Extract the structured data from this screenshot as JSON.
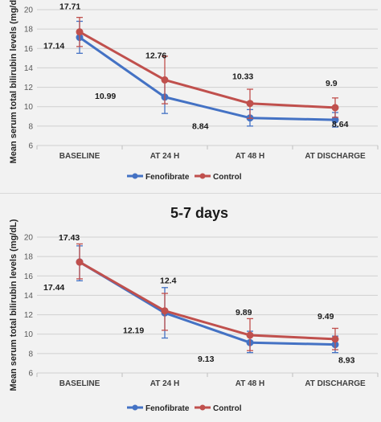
{
  "colors": {
    "fenofibrate": "#4472c4",
    "control": "#c0504d",
    "grid": "#d0d0d0",
    "axis": "#bfbfbf"
  },
  "chart_data": [
    {
      "type": "line",
      "title": "",
      "ylabel": "Mean serum total bilirubin levels (mg/dL)",
      "xlabel": "",
      "categories": [
        "BASELINE",
        "AT 24 H",
        "AT 48 H",
        "AT DISCHARGE"
      ],
      "ylim": [
        6,
        20
      ],
      "yticks": [
        6,
        8,
        10,
        12,
        14,
        16,
        18,
        20
      ],
      "grid": true,
      "legend": "bottom",
      "series": [
        {
          "name": "Fenofibrate",
          "values": [
            17.14,
            10.99,
            8.84,
            8.64
          ],
          "labels": [
            "17.14",
            "10.99",
            "8.84",
            "8.64"
          ],
          "err_low": [
            15.5,
            9.3,
            8.0,
            7.9
          ],
          "err_high": [
            18.8,
            12.7,
            9.7,
            9.4
          ]
        },
        {
          "name": "Control",
          "values": [
            17.71,
            12.76,
            10.33,
            9.9
          ],
          "labels": [
            "17.71",
            "12.76",
            "10.33",
            "9.9"
          ],
          "err_low": [
            16.2,
            10.3,
            8.8,
            8.9
          ],
          "err_high": [
            19.2,
            15.2,
            11.8,
            10.9
          ]
        }
      ]
    },
    {
      "type": "line",
      "title": "5-7 days",
      "ylabel": "Mean serum total bilirubin levels (mg/dL)",
      "xlabel": "",
      "categories": [
        "BASELINE",
        "AT 24 H",
        "AT 48 H",
        "AT DISCHARGE"
      ],
      "ylim": [
        6,
        20
      ],
      "yticks": [
        6,
        8,
        10,
        12,
        14,
        16,
        18,
        20
      ],
      "grid": true,
      "legend": "bottom",
      "series": [
        {
          "name": "Fenofibrate",
          "values": [
            17.44,
            12.19,
            9.13,
            8.93
          ],
          "labels": [
            "17.44",
            "12.19",
            "9.13",
            "8.93"
          ],
          "err_low": [
            15.5,
            9.6,
            8.1,
            8.1
          ],
          "err_high": [
            19.1,
            14.8,
            10.3,
            9.8
          ]
        },
        {
          "name": "Control",
          "values": [
            17.43,
            12.4,
            9.89,
            9.49
          ],
          "labels": [
            "17.43",
            "12.4",
            "9.89",
            "9.49"
          ],
          "err_low": [
            15.7,
            10.4,
            8.3,
            8.4
          ],
          "err_high": [
            19.3,
            14.2,
            11.6,
            10.6
          ]
        }
      ]
    }
  ]
}
